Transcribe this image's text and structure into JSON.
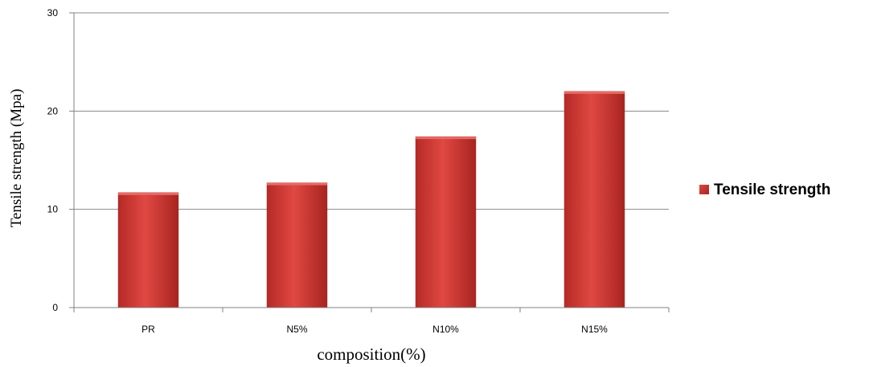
{
  "chart_data": {
    "type": "bar",
    "categories": [
      "PR",
      "N5%",
      "N10%",
      "N15%"
    ],
    "series": [
      {
        "name": "Tensile strength",
        "values": [
          11.7,
          12.7,
          17.4,
          22.0
        ]
      }
    ],
    "xlabel": "composition(%)",
    "ylabel": "Tensile strength (Mpa)",
    "ylim": [
      0,
      30
    ],
    "yticks": [
      0,
      10,
      20,
      30
    ],
    "grid": true,
    "legend": "right",
    "bar_color": "#c0302c"
  }
}
